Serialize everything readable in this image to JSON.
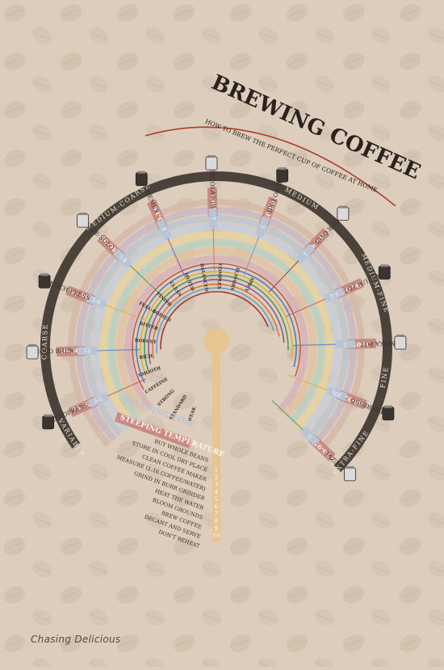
{
  "title": "BREWING COFFEE",
  "subtitle": "HOW TO BREW THE PERFECT CUP OF COFFEE AT HOME",
  "grind_sizes": [
    "VARIABLE",
    "COARSE",
    "MEDIUM-COARSE",
    "MEDIUM",
    "MEDIUM-FINE",
    "FINE",
    "EXTRA-FINE"
  ],
  "methods": [
    {
      "name": "AEROPRESS",
      "temp": "75-92°",
      "time": "5-1"
    },
    {
      "name": "COLD BREW",
      "temp": "10-30°",
      "time": "12"
    },
    {
      "name": "FRENCH PRESS",
      "temp": "90-96°",
      "time": "3-4"
    },
    {
      "name": "CAFE SOLO",
      "temp": "90-96°C",
      "time": "3-4"
    },
    {
      "name": "CHEMEX",
      "temp": "93°C",
      "time": "4"
    },
    {
      "name": "PERCOLATOR",
      "temp": "100°",
      "time": "7"
    },
    {
      "name": "AUTO DRIP",
      "temp": "85-95°",
      "time": "5"
    },
    {
      "name": "POUR OVER",
      "temp": "90-96°",
      "time": "3"
    },
    {
      "name": "VACUUM POT",
      "temp": "90-95°",
      "time": "1-2"
    },
    {
      "name": "MOKA POT",
      "temp": "100°",
      "time": "5"
    },
    {
      "name": "ESPRESSO",
      "temp": "88-92°",
      "time": "30s"
    },
    {
      "name": "CEZVE",
      "temp": "70-95°",
      "time": "3"
    }
  ],
  "flavor_left": [
    "WEAK",
    "STANDARD",
    "STRONG",
    "CAFFEINE"
  ],
  "flavor_top": [
    "SMOOTH",
    "RICH",
    "ROBUST",
    "BITTER",
    "FULL-BODIED",
    "FINISH"
  ],
  "flavor_right": [
    "CLEAN",
    "MUTED",
    "BALANCED",
    "COMPLEX",
    "FLAVORS",
    "SPICY"
  ],
  "legend": {
    "time": "STEEPING TIME",
    "temp": "STEEPING TEMPERATURE"
  },
  "steps": [
    "BUY WHOLE BEANS",
    "STORE IN COOL DRY PLACE",
    "CLEAN COFFEE MAKER",
    "MEASURE (1:16 COFFEE/WATER)",
    "GRIND IN BURR GRINDER",
    "HEAT THE WATER",
    "BLOOM GROUNDS",
    "BREW COFFEE",
    "DECANT AND SERVE",
    "DON'T REHEAT"
  ],
  "step_numbers": [
    "1",
    "2",
    "3",
    "4",
    "5",
    "6",
    "7",
    "8",
    "9",
    "10"
  ],
  "credit": "Chasing Delicious",
  "colors": {
    "background": "#dccdbd",
    "dark_ring": "#4a423b",
    "temperature": "#c98a82",
    "time": "#b9c4d4",
    "spoon": "#e8c493",
    "accent_red": "#b23a2c"
  }
}
